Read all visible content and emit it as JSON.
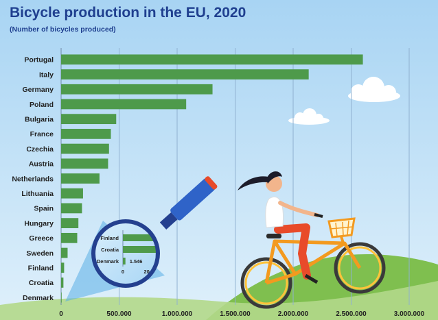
{
  "chart_data": {
    "type": "bar",
    "orientation": "horizontal",
    "title": "Bicycle production in the EU, 2020",
    "subtitle": "(Number of bicycles produced)",
    "categories": [
      "Portugal",
      "Italy",
      "Germany",
      "Poland",
      "Bulgaria",
      "France",
      "Czechia",
      "Austria",
      "Netherlands",
      "Lithuania",
      "Spain",
      "Hungary",
      "Greece",
      "Sweden",
      "Finland",
      "Croatia",
      "Denmark"
    ],
    "values": [
      2601000,
      2134000,
      1305000,
      1078000,
      475000,
      429000,
      413000,
      405000,
      331000,
      189000,
      180000,
      149000,
      139000,
      56000,
      26000,
      20000,
      1546
    ],
    "xlim": [
      0,
      3000000
    ],
    "xticks": [
      "0",
      "500.000",
      "1.000.000",
      "1.500.000",
      "2.000.000",
      "2.500.000",
      "3.000.000"
    ],
    "grid": true,
    "colors": {
      "bar": "#4e9a4b",
      "grid": "#8fb0d0",
      "title": "#1f3f8f"
    },
    "inset": {
      "description_label": "magnifier",
      "categories": [
        "Finland",
        "Croatia",
        "Denmark"
      ],
      "values": [
        26000,
        20000,
        1546
      ],
      "data_labels": [
        "",
        "",
        "1.546"
      ],
      "xticks": [
        "0",
        "20.000"
      ],
      "xlim": [
        0,
        20000
      ]
    }
  }
}
